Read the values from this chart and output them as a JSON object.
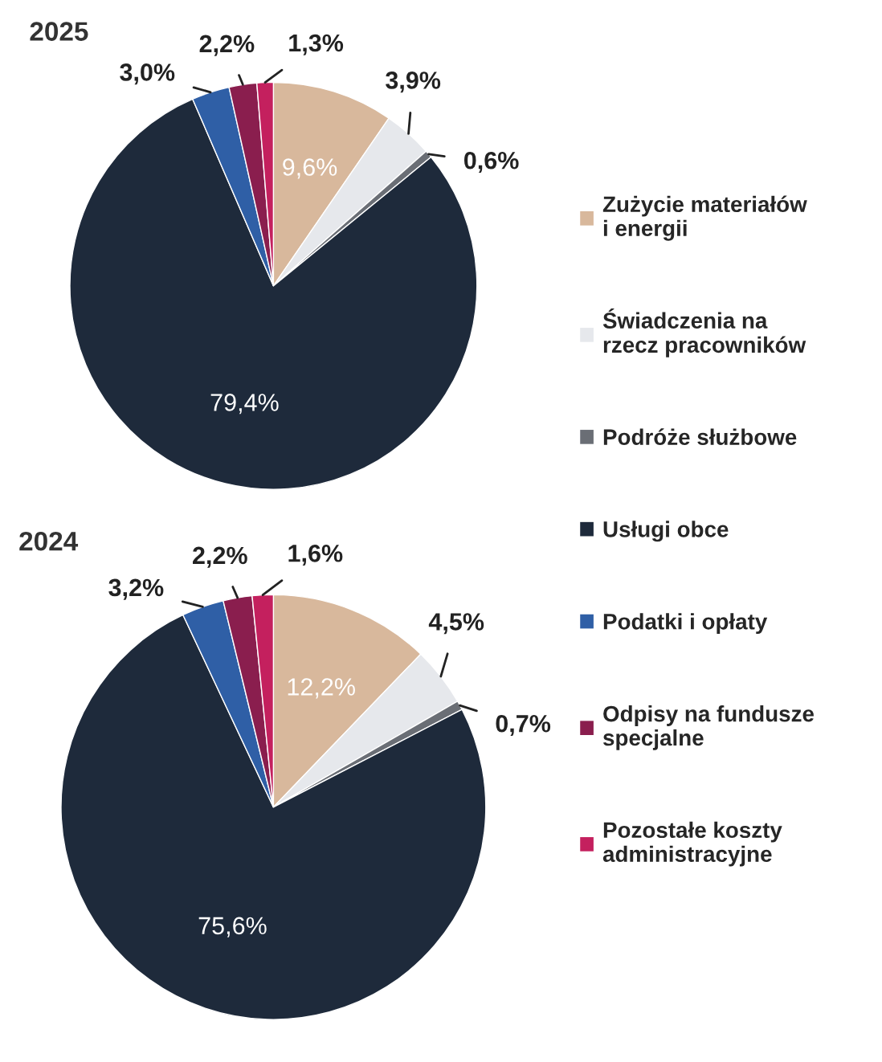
{
  "chart_data": [
    {
      "type": "pie",
      "title": "2025",
      "legend": "right",
      "categories": [
        "Zużycie materiałów\ni energii",
        "Świadczenia na\nrzecz pracowników",
        "Podróże służbowe",
        "Usługi obce",
        "Podatki i opłaty",
        "Odpisy na fundusze\nspecjalne",
        "Pozostałe koszty\nadministracyjne"
      ],
      "values": [
        9.6,
        3.9,
        0.6,
        79.4,
        3.0,
        2.2,
        1.3
      ],
      "value_labels": [
        "9,6%",
        "3,9%",
        "0,6%",
        "79,4%",
        "3,0%",
        "2,2%",
        "1,3%"
      ],
      "colors": [
        "#d8b89c",
        "#e6e8ec",
        "#6a6e75",
        "#1e2a3b",
        "#2f5fa6",
        "#8a1e4e",
        "#c4205e"
      ]
    },
    {
      "type": "pie",
      "title": "2024",
      "categories": [
        null,
        null,
        null,
        null,
        null,
        null,
        null
      ],
      "values": [
        12.2,
        4.5,
        0.7,
        75.6,
        3.2,
        2.2,
        1.6
      ],
      "value_labels": [
        "12,2%",
        "4,5%",
        "0,7%",
        "75,6%",
        "3,2%",
        "2,2%",
        "1,6%"
      ],
      "colors": [
        "#d8b89c",
        "#e6e8ec",
        "#6a6e75",
        "#1e2a3b",
        "#2f5fa6",
        "#8a1e4e",
        "#c4205e"
      ]
    }
  ]
}
